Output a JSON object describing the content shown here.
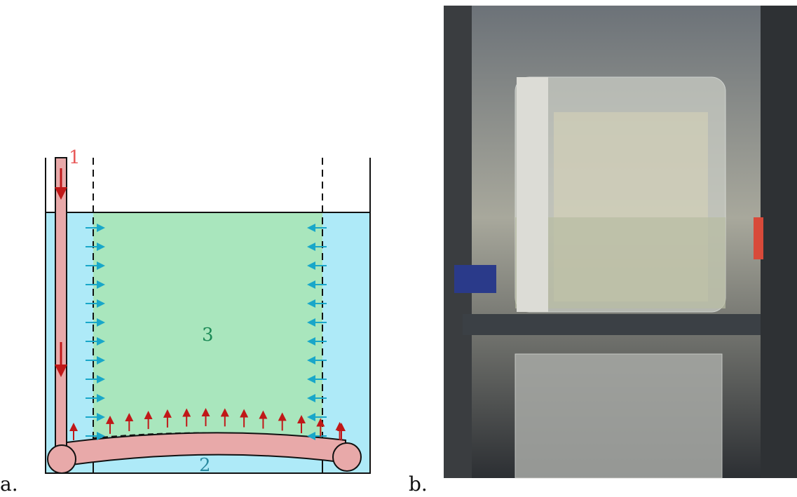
{
  "diagram": {
    "inlet": "1",
    "outer_region": "2",
    "inner_region": "3"
  },
  "labels": {
    "panel_a": "a.",
    "panel_b": "b."
  }
}
